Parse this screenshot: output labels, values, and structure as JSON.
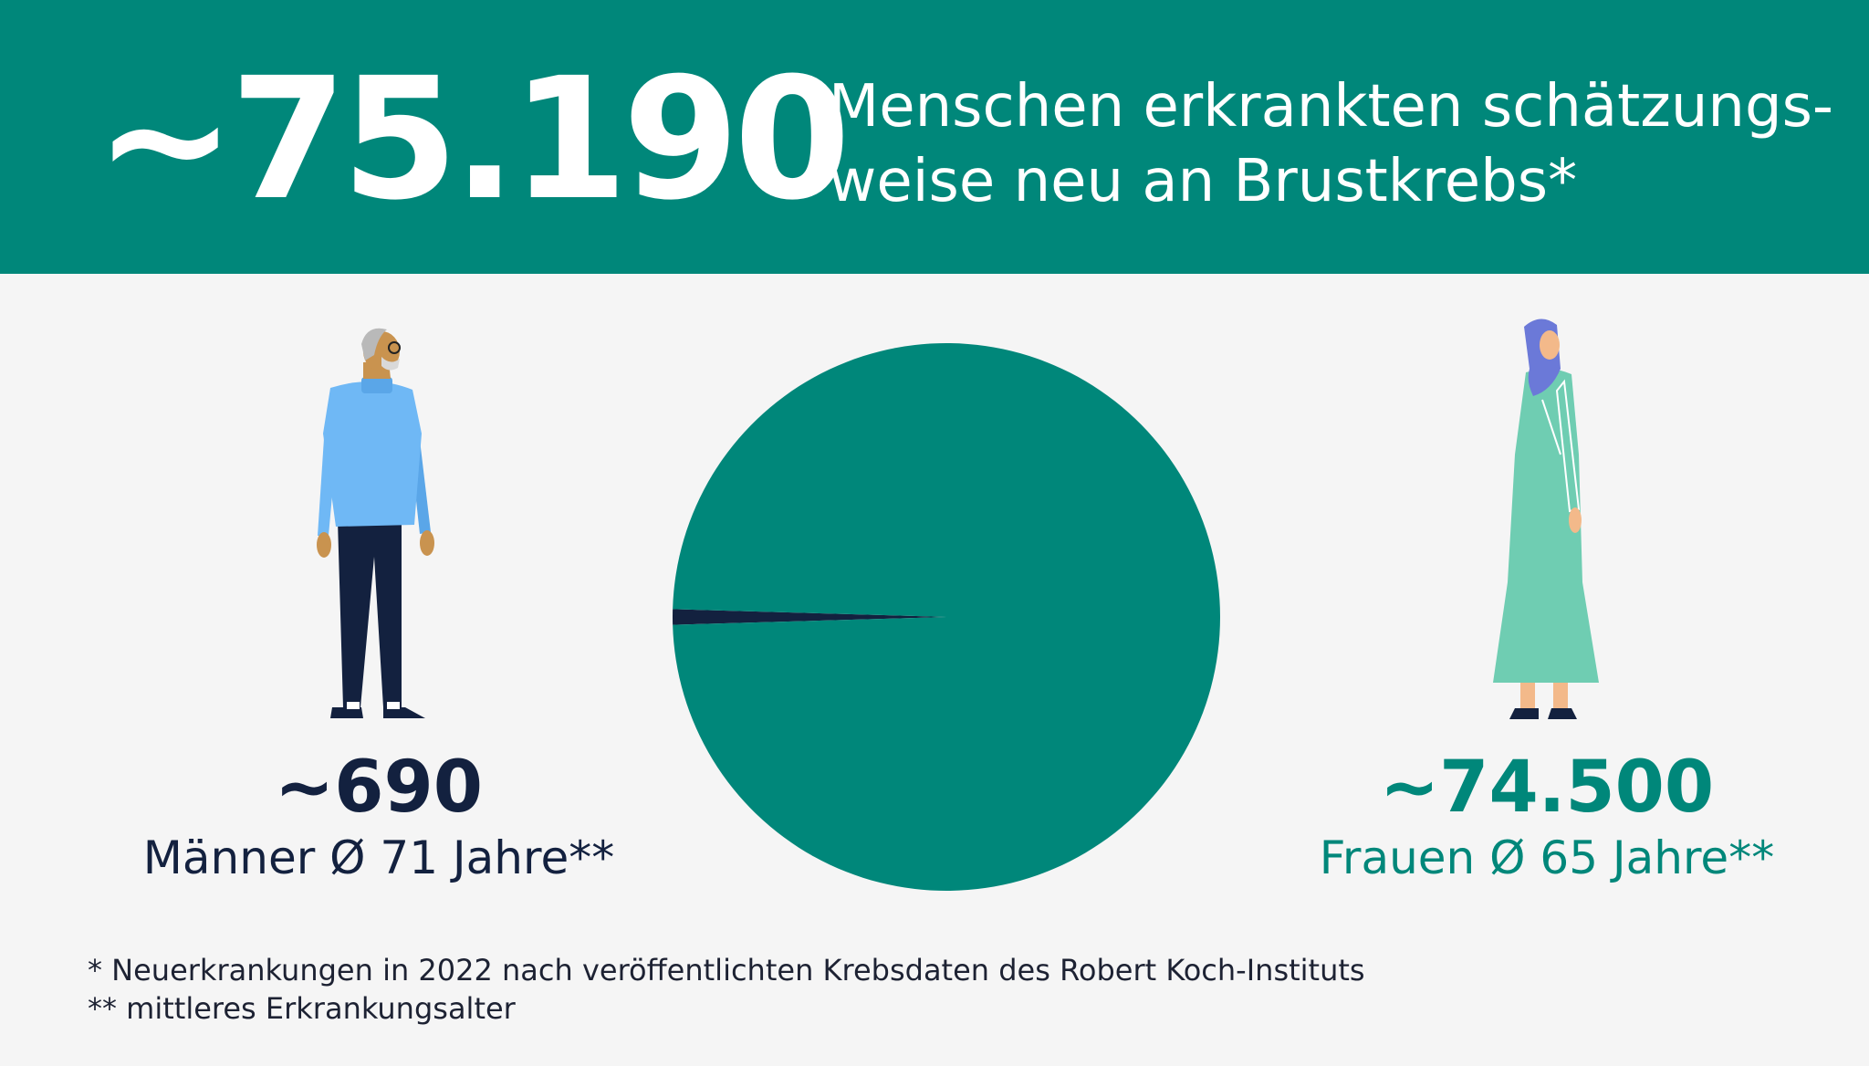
{
  "banner": {
    "total_value": "~75.190",
    "headline_line1": "Menschen erkrankten schätzungs-",
    "headline_line2": "weise neu an Brustkrebs*"
  },
  "men": {
    "value": "~690",
    "label": "Männer Ø 71 Jahre**"
  },
  "women": {
    "value": "~74.500",
    "label": "Frauen Ø 65 Jahre**"
  },
  "footnotes": [
    "* Neuerkrankungen in 2022 nach veröffentlichten Krebsdaten des Robert Koch-Instituts",
    "** mittleres Erkrankungsalter"
  ],
  "chart_data": {
    "type": "pie",
    "slices": [
      {
        "label": "Männer",
        "value": 690,
        "color": "#13213f"
      },
      {
        "label": "Frauen",
        "value": 74500,
        "color": "#00877a"
      }
    ]
  },
  "colors": {
    "teal": "#00877a",
    "navy": "#13213f",
    "background": "#f5f5f5",
    "man_sweater": "#6fb8f5",
    "woman_dress": "#6fcdb2",
    "hijab": "#6b79d8"
  },
  "icons": [
    "man-figure-icon",
    "woman-figure-icon"
  ]
}
